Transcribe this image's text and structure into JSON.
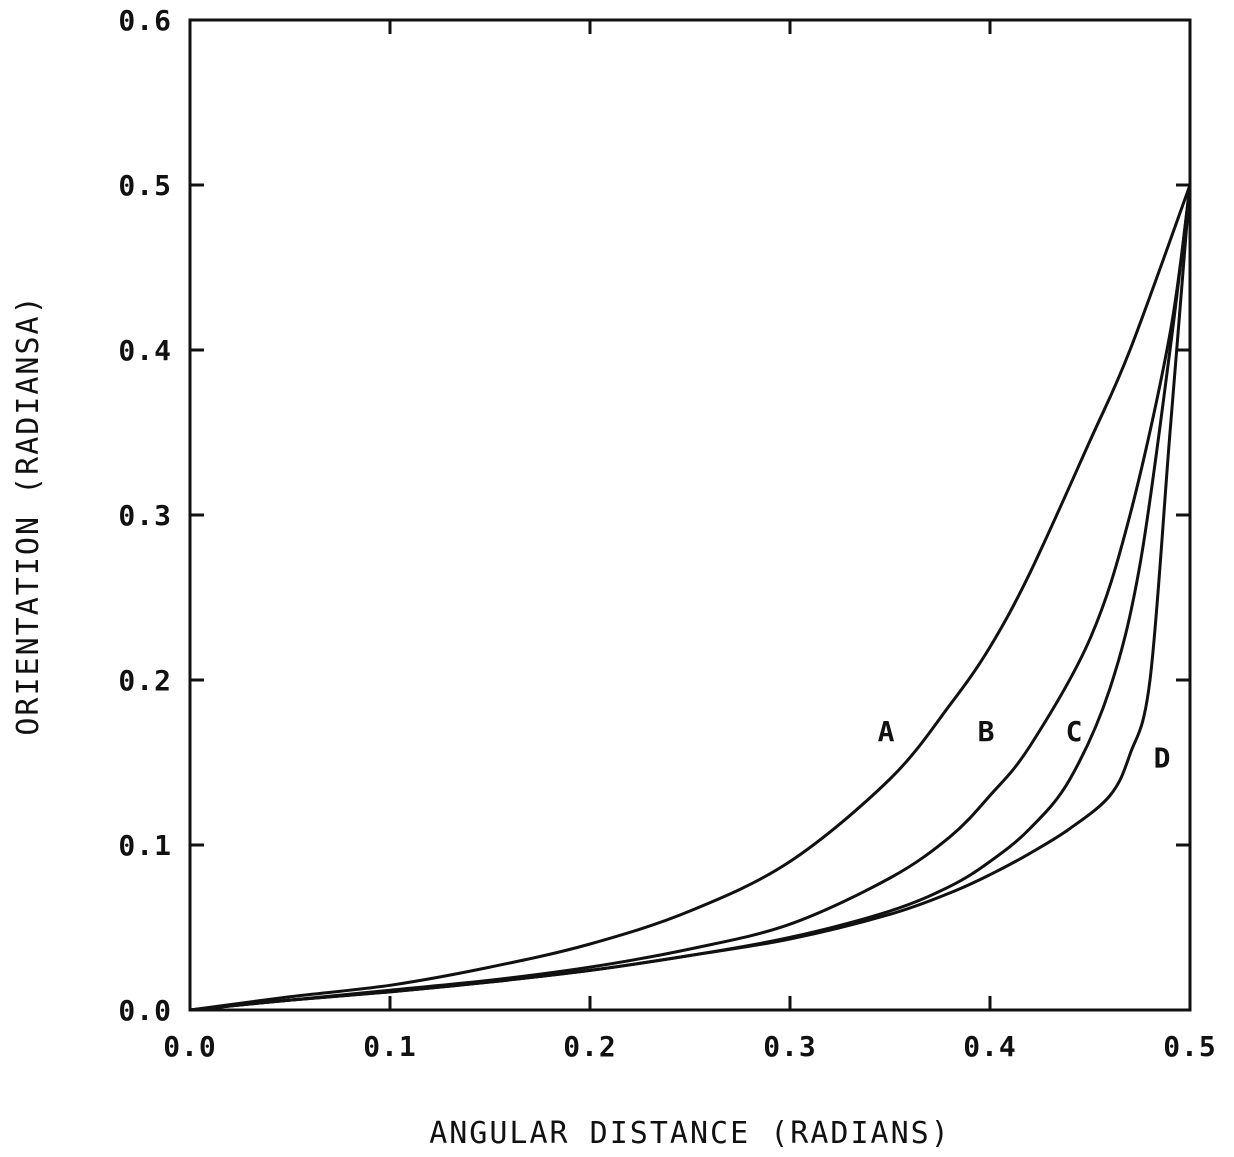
{
  "chart_data": {
    "type": "line",
    "title": "",
    "xlabel": "ANGULAR DISTANCE (RADIANS)",
    "ylabel": "ORIENTATION (RADIANSA)",
    "xlim": [
      0.0,
      0.5
    ],
    "ylim": [
      0.0,
      0.6
    ],
    "x_ticks": [
      "0.0",
      "0.1",
      "0.2",
      "0.3",
      "0.4",
      "0.5"
    ],
    "y_ticks": [
      "0.0",
      "0.1",
      "0.2",
      "0.3",
      "0.4",
      "0.5",
      "0.6"
    ],
    "grid": false,
    "legend": "inline curve labels",
    "series": [
      {
        "name": "A",
        "x": [
          0.0,
          0.05,
          0.1,
          0.15,
          0.2,
          0.25,
          0.3,
          0.35,
          0.38,
          0.4,
          0.42,
          0.45,
          0.47,
          0.5
        ],
        "y": [
          0.0,
          0.008,
          0.015,
          0.026,
          0.04,
          0.06,
          0.09,
          0.14,
          0.185,
          0.22,
          0.265,
          0.345,
          0.4,
          0.5
        ]
      },
      {
        "name": "B",
        "x": [
          0.0,
          0.05,
          0.1,
          0.15,
          0.2,
          0.25,
          0.3,
          0.35,
          0.38,
          0.4,
          0.42,
          0.45,
          0.47,
          0.49,
          0.5
        ],
        "y": [
          0.0,
          0.006,
          0.012,
          0.018,
          0.026,
          0.037,
          0.052,
          0.08,
          0.105,
          0.13,
          0.16,
          0.225,
          0.3,
          0.41,
          0.5
        ]
      },
      {
        "name": "C",
        "x": [
          0.0,
          0.05,
          0.1,
          0.15,
          0.2,
          0.25,
          0.3,
          0.35,
          0.38,
          0.4,
          0.42,
          0.44,
          0.46,
          0.475,
          0.49,
          0.5
        ],
        "y": [
          0.0,
          0.006,
          0.011,
          0.017,
          0.024,
          0.033,
          0.044,
          0.06,
          0.075,
          0.09,
          0.11,
          0.14,
          0.195,
          0.27,
          0.4,
          0.5
        ]
      },
      {
        "name": "D",
        "x": [
          0.0,
          0.05,
          0.1,
          0.15,
          0.2,
          0.25,
          0.3,
          0.35,
          0.38,
          0.4,
          0.42,
          0.44,
          0.46,
          0.47,
          0.48,
          0.49,
          0.5
        ],
        "y": [
          0.0,
          0.006,
          0.011,
          0.017,
          0.024,
          0.033,
          0.043,
          0.058,
          0.071,
          0.082,
          0.095,
          0.11,
          0.13,
          0.155,
          0.2,
          0.35,
          0.5
        ]
      }
    ]
  }
}
